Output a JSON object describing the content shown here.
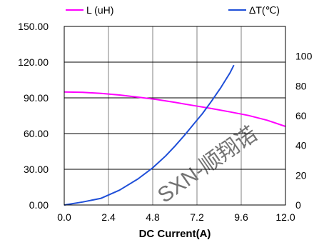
{
  "chart_data": {
    "type": "line",
    "xlabel": "DC Current(A)",
    "xlim": [
      0,
      12
    ],
    "xticks": [
      "0.0",
      "2.4",
      "4.8",
      "7.2",
      "9.6",
      "12.0"
    ],
    "y_left": {
      "lim": [
        0,
        150
      ],
      "ticks": [
        "0.00",
        "30.00",
        "60.00",
        "90.00",
        "120.00",
        "150.00"
      ]
    },
    "y_right": {
      "lim": [
        0,
        120
      ],
      "ticks": [
        "0",
        "20",
        "40",
        "60",
        "80",
        "100"
      ]
    },
    "grid": true,
    "legend_position": "top",
    "series": [
      {
        "name": "L (uH)",
        "axis": "left",
        "color": "#ff00ff",
        "x": [
          0,
          1,
          2,
          3,
          4,
          5,
          6,
          7,
          8,
          9,
          10,
          11,
          12
        ],
        "y": [
          95.0,
          94.6,
          93.8,
          92.4,
          90.6,
          88.6,
          86.2,
          83.6,
          81.0,
          78.2,
          75.2,
          71.2,
          66.0
        ]
      },
      {
        "name": "ΔT(℃)",
        "axis": "right",
        "color": "#1f4fd8",
        "x": [
          0,
          1,
          2,
          3,
          4,
          4.8,
          5.5,
          6,
          6.5,
          7,
          7.5,
          8,
          8.5,
          9,
          9.2
        ],
        "y": [
          0,
          2,
          4.5,
          10,
          17.5,
          25,
          33,
          39.5,
          46.5,
          54,
          61.5,
          70,
          79,
          89,
          94
        ]
      }
    ]
  },
  "watermark": "SXN-顺翔诺"
}
